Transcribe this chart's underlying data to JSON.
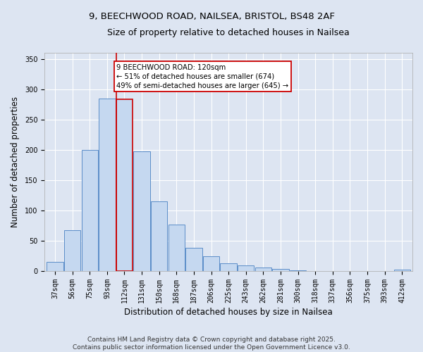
{
  "title_line1": "9, BEECHWOOD ROAD, NAILSEA, BRISTOL, BS48 2AF",
  "title_line2": "Size of property relative to detached houses in Nailsea",
  "xlabel": "Distribution of detached houses by size in Nailsea",
  "ylabel": "Number of detached properties",
  "footer_line1": "Contains HM Land Registry data © Crown copyright and database right 2025.",
  "footer_line2": "Contains public sector information licensed under the Open Government Licence v3.0.",
  "categories": [
    "37sqm",
    "56sqm",
    "75sqm",
    "93sqm",
    "112sqm",
    "131sqm",
    "150sqm",
    "168sqm",
    "187sqm",
    "206sqm",
    "225sqm",
    "243sqm",
    "262sqm",
    "281sqm",
    "300sqm",
    "318sqm",
    "337sqm",
    "356sqm",
    "375sqm",
    "393sqm",
    "412sqm"
  ],
  "bar_heights": [
    15,
    68,
    200,
    285,
    283,
    197,
    115,
    77,
    38,
    24,
    13,
    9,
    6,
    4,
    1,
    0,
    0,
    0,
    0,
    0,
    2
  ],
  "bar_color": "#c5d8f0",
  "bar_edge_color": "#5b8dc8",
  "highlight_bar_index": 4,
  "highlight_bar_edge": "#cc0000",
  "vline_color": "#cc0000",
  "annotation_text": "9 BEECHWOOD ROAD: 120sqm\n← 51% of detached houses are smaller (674)\n49% of semi-detached houses are larger (645) →",
  "annotation_box_facecolor": "#ffffff",
  "annotation_box_edgecolor": "#cc0000",
  "ylim": [
    0,
    360
  ],
  "yticks": [
    0,
    50,
    100,
    150,
    200,
    250,
    300,
    350
  ],
  "background_color": "#dde5f2",
  "plot_bg_color": "#dde5f2",
  "title1_fontsize": 9.5,
  "title2_fontsize": 9,
  "tick_fontsize": 7,
  "xlabel_fontsize": 8.5,
  "ylabel_fontsize": 8.5,
  "footer_fontsize": 6.5
}
